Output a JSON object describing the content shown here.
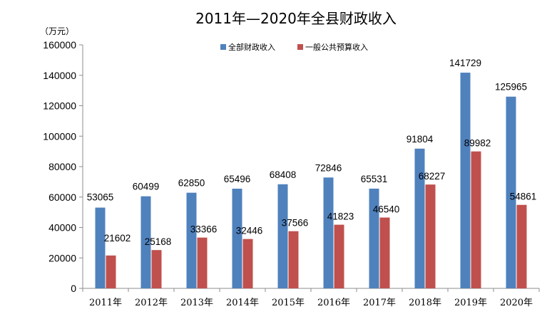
{
  "chart_data": {
    "type": "bar",
    "title": "2011年—2020年全县财政收入",
    "unit_label": "（万元）",
    "categories": [
      "2011年",
      "2012年",
      "2013年",
      "2014年",
      "2015年",
      "2016年",
      "2017年",
      "2018年",
      "2019年",
      "2020年"
    ],
    "series": [
      {
        "name": "全部财政收入",
        "color": "#4f81bd",
        "values": [
          53065,
          60499,
          62850,
          65496,
          68408,
          72846,
          65531,
          91804,
          141729,
          125965
        ]
      },
      {
        "name": "一般公共预算收入",
        "color": "#c0504d",
        "values": [
          21602,
          25168,
          33366,
          32446,
          37566,
          41823,
          46540,
          68227,
          89982,
          54861
        ]
      }
    ],
    "ylim": [
      0,
      160000
    ],
    "yticks": [
      0,
      20000,
      40000,
      60000,
      80000,
      100000,
      120000,
      140000,
      160000
    ],
    "grid": false,
    "legend_position": "top-center",
    "data_labels": true
  }
}
